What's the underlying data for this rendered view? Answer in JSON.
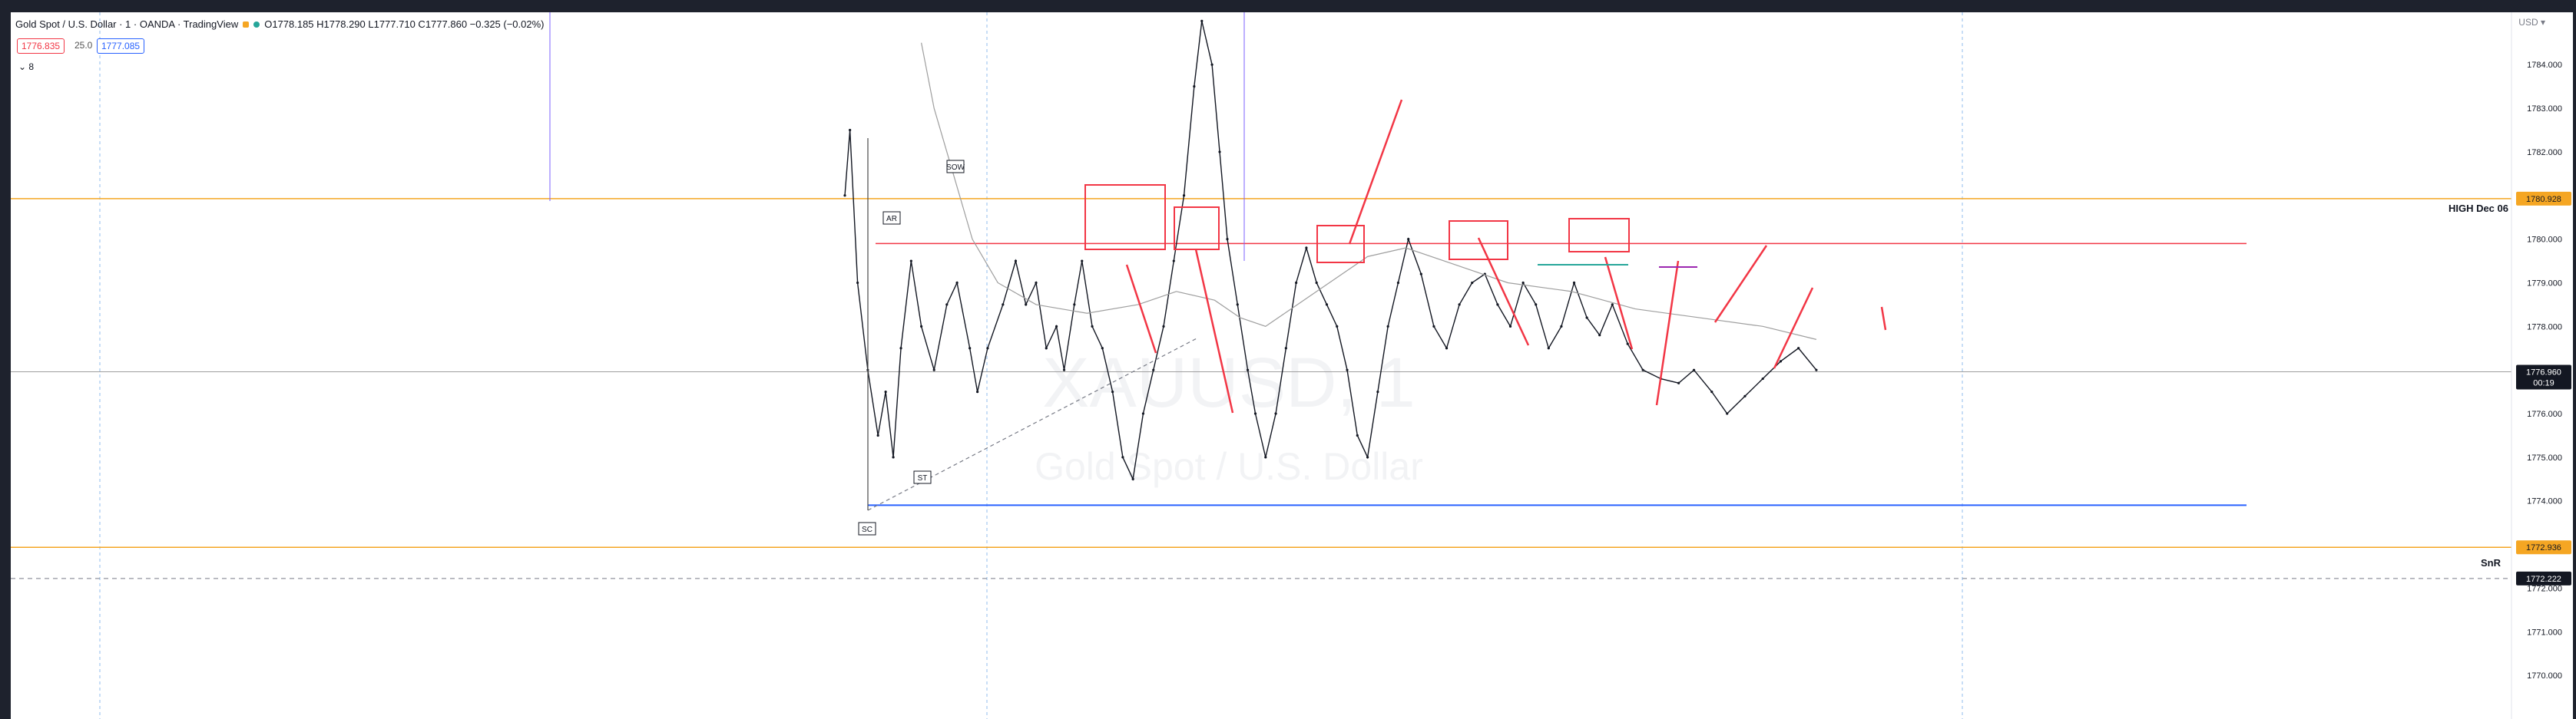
{
  "header": {
    "title": "Gold Spot / U.S. Dollar · 1 · OANDA · TradingView",
    "ohlc": "O1778.185 H1778.290 L1777.710 C1777.860 −0.325 (−0.02%)"
  },
  "trade": {
    "sell": "1776.835",
    "spread": "25.0",
    "buy": "1777.085"
  },
  "collapse_label": "8",
  "axis_currency": "USD",
  "watermark": {
    "symbol": "XAUUSD, 1",
    "name": "Gold Spot / U.S. Dollar"
  },
  "labels": {
    "high": "HIGH Dec 06",
    "snr": "SnR",
    "ar": "AR",
    "st": "ST",
    "sc": "SC",
    "sow": "SOW"
  },
  "colors": {
    "accent_orange": "#f5a623",
    "red": "#f23645",
    "blue": "#2962ff",
    "candle": "#131722",
    "ma": "#9e9e9e"
  },
  "chart_data": {
    "type": "line",
    "title": "Gold Spot / U.S. Dollar · 1 · OANDA",
    "xlabel": "",
    "ylabel": "",
    "ylim": [
      1769.0,
      1785.2
    ],
    "y_ticks": [
      "1784.000",
      "1783.000",
      "1782.000",
      "1781.000",
      "1780.000",
      "1779.000",
      "1778.000",
      "1777.000",
      "1776.000",
      "1775.000",
      "1774.000",
      "1773.000",
      "1772.000",
      "1771.000",
      "1770.000"
    ],
    "x_range": [
      0,
      1000
    ],
    "series": [
      {
        "values": [
          1781.0,
          1782.5,
          1779.0,
          1777.0,
          1775.5,
          1776.5,
          1775.0,
          1777.5,
          1779.5,
          1778.0,
          1777.0,
          1778.5,
          1779.0,
          1777.5,
          1776.5,
          1777.5,
          1778.5,
          1779.5,
          1778.5,
          1779.0,
          1777.5,
          1778.0,
          1777.0,
          1778.5,
          1779.5,
          1778.0,
          1777.5,
          1776.5,
          1775.0,
          1774.5,
          1776.0,
          1777.0,
          1778.0,
          1779.5,
          1781.0,
          1783.5,
          1785.0,
          1784.0,
          1782.0,
          1780.0,
          1778.5,
          1777.0,
          1776.0,
          1775.0,
          1776.0,
          1777.5,
          1779.0,
          1779.8,
          1779.0,
          1778.5,
          1778.0,
          1777.0,
          1775.5,
          1775.0,
          1776.5,
          1778.0,
          1779.0,
          1780.0,
          1779.2,
          1778.0,
          1777.5,
          1778.5,
          1779.0,
          1779.2,
          1778.5,
          1778.0,
          1779.0,
          1778.5,
          1777.5,
          1778.0,
          1779.0,
          1778.2,
          1777.8,
          1778.5,
          1777.6,
          1777.0,
          1776.8,
          1776.7,
          1777.0,
          1776.5,
          1776.0,
          1776.4,
          1776.8,
          1777.2,
          1777.5,
          1777.0
        ],
        "x": [
          0,
          4,
          10,
          18,
          26,
          32,
          38,
          44,
          52,
          60,
          70,
          80,
          88,
          98,
          104,
          112,
          124,
          134,
          142,
          150,
          158,
          166,
          172,
          180,
          186,
          194,
          202,
          210,
          218,
          226,
          234,
          242,
          250,
          258,
          266,
          274,
          280,
          288,
          294,
          300,
          308,
          316,
          322,
          330,
          338,
          346,
          354,
          362,
          370,
          378,
          386,
          394,
          402,
          410,
          418,
          426,
          434,
          442,
          452,
          462,
          472,
          482,
          492,
          502,
          512,
          522,
          532,
          542,
          552,
          562,
          572,
          582,
          592,
          602,
          614,
          626,
          640,
          654,
          666,
          680,
          692,
          706,
          720,
          734,
          748,
          762
        ]
      },
      {
        "name": "MA",
        "values": [
          1784.5,
          1783.0,
          1781.5,
          1780.0,
          1779.0,
          1778.5,
          1778.3,
          1778.5,
          1778.8,
          1778.6,
          1778.2,
          1778.0,
          1778.4,
          1779.0,
          1779.6,
          1779.8,
          1779.4,
          1779.0,
          1778.8,
          1778.4,
          1778.2,
          1778.0,
          1777.7
        ],
        "x": [
          60,
          70,
          85,
          100,
          120,
          150,
          190,
          230,
          260,
          290,
          310,
          330,
          350,
          380,
          410,
          440,
          480,
          520,
          570,
          620,
          670,
          720,
          762
        ]
      }
    ],
    "horizontal_levels": [
      {
        "label": "HIGH Dec 06",
        "value": 1780.928,
        "color": "#f5a623"
      },
      {
        "value": 1779.9,
        "color": "#f23645"
      },
      {
        "value": 1776.96,
        "color": "#9e9e9e"
      },
      {
        "value": 1773.9,
        "color": "#2962ff"
      },
      {
        "label": "SnR",
        "value": 1772.936,
        "color": "#f5a623"
      },
      {
        "value": 1772.222,
        "color": "#787b86"
      }
    ],
    "price_tags": [
      {
        "text": "1780.928",
        "value": 1780.928,
        "bg": "#f5a623",
        "fg": "#131722"
      },
      {
        "text": "1776.960\n00:19",
        "value": 1776.96,
        "bg": "#131722",
        "fg": "#ffffff"
      },
      {
        "text": "1772.936",
        "value": 1772.936,
        "bg": "#f5a623",
        "fg": "#131722"
      },
      {
        "text": "1772.222",
        "value": 1772.222,
        "bg": "#131722",
        "fg": "#ffffff"
      }
    ],
    "legend": "none",
    "grid": false
  }
}
